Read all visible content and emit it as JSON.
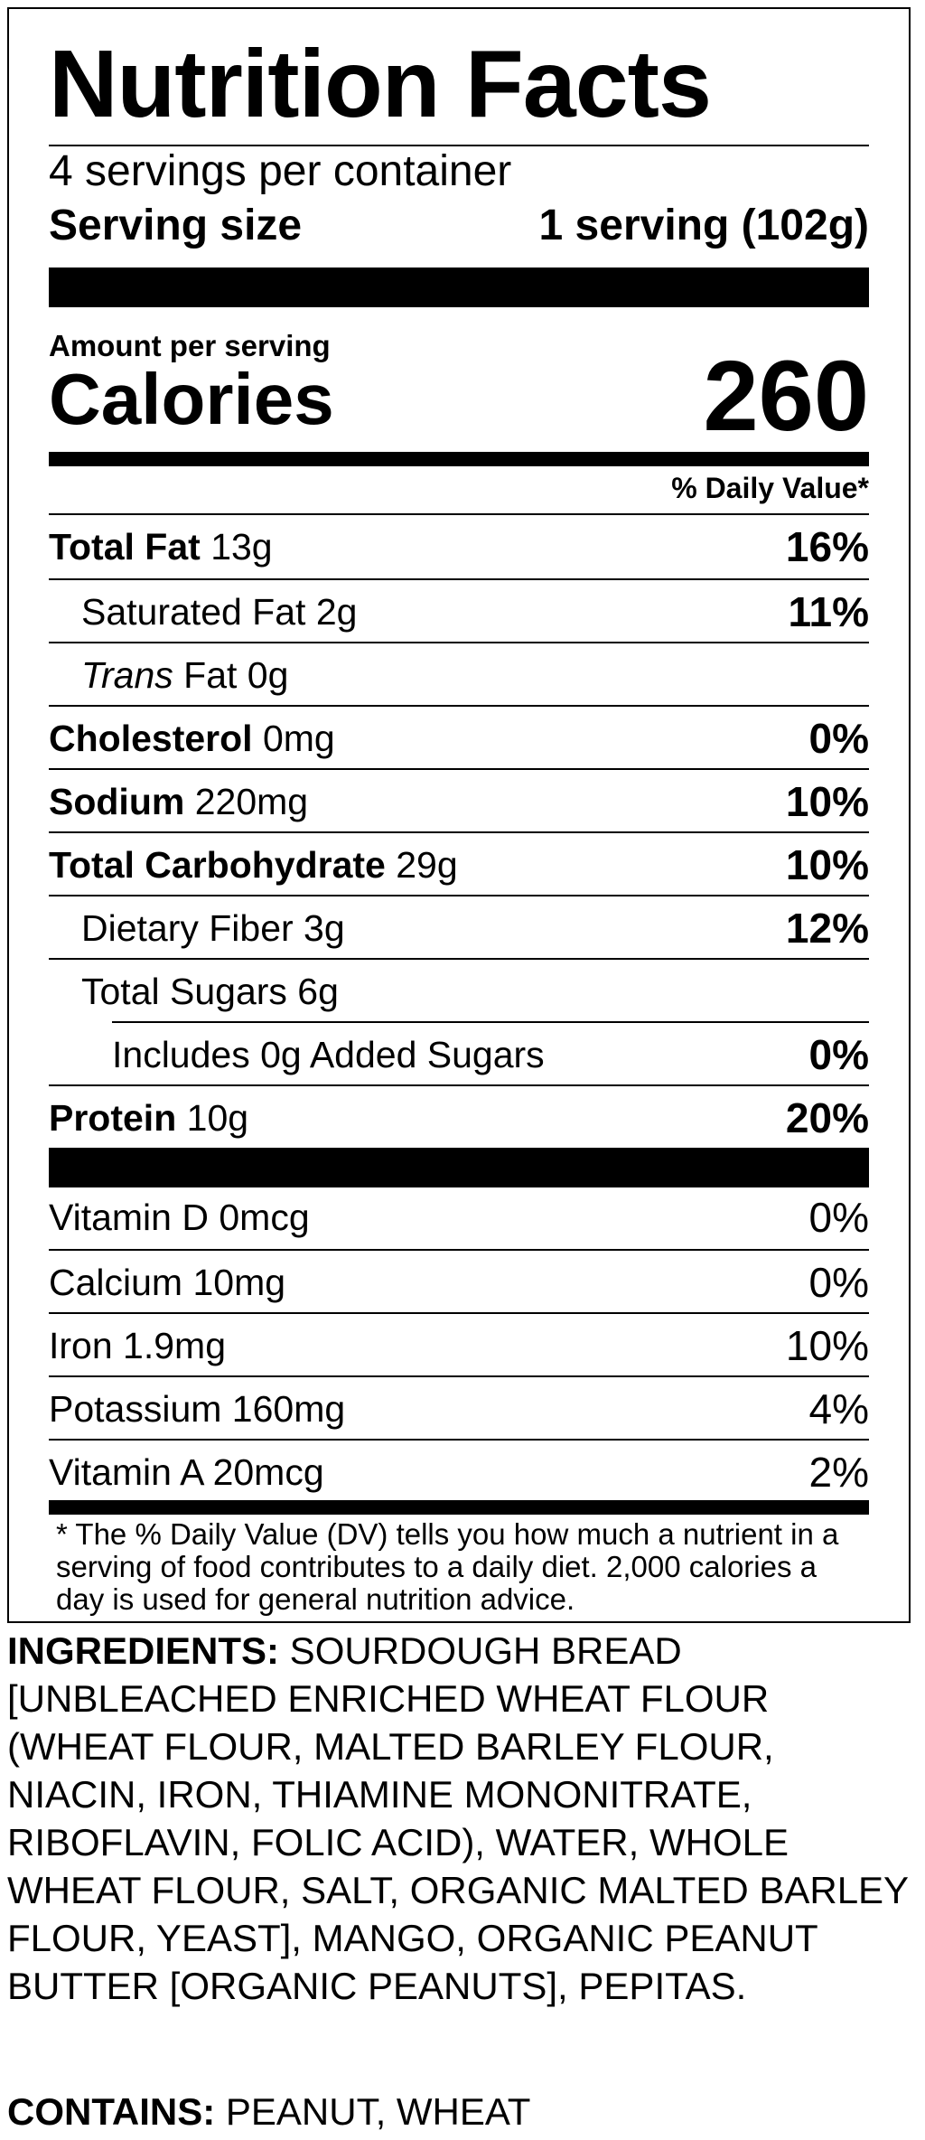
{
  "label": {
    "title": "Nutrition Facts",
    "servings_per_container": "4 servings per container",
    "serving_size_label": "Serving size",
    "serving_size_value": "1 serving (102g)",
    "amount_per_serving": "Amount per serving",
    "calories_label": "Calories",
    "calories_value": "260",
    "daily_value_header": "% Daily Value*",
    "nutrients": [
      {
        "bold": "Total Fat",
        "italic": "",
        "rest": " 13g",
        "pct": "16%"
      },
      {
        "bold": "",
        "italic": "",
        "rest": "Saturated Fat 2g",
        "pct": "11%"
      },
      {
        "bold": "",
        "italic": "Trans",
        "rest": " Fat 0g",
        "pct": ""
      },
      {
        "bold": "Cholesterol",
        "italic": "",
        "rest": " 0mg",
        "pct": "0%"
      },
      {
        "bold": "Sodium",
        "italic": "",
        "rest": " 220mg",
        "pct": "10%"
      },
      {
        "bold": "Total Carbohydrate",
        "italic": "",
        "rest": " 29g",
        "pct": "10%"
      },
      {
        "bold": "",
        "italic": "",
        "rest": "Dietary Fiber 3g",
        "pct": "12%"
      },
      {
        "bold": "",
        "italic": "",
        "rest": "Total Sugars 6g",
        "pct": ""
      },
      {
        "bold": "",
        "italic": "",
        "rest": "Includes 0g Added Sugars",
        "pct": "0%"
      },
      {
        "bold": "Protein",
        "italic": "",
        "rest": " 10g",
        "pct": "20%"
      }
    ],
    "vitamins": [
      {
        "name": "Vitamin D 0mcg",
        "pct": "0%"
      },
      {
        "name": "Calcium 10mg",
        "pct": "0%"
      },
      {
        "name": "Iron 1.9mg",
        "pct": "10%"
      },
      {
        "name": "Potassium 160mg",
        "pct": "4%"
      },
      {
        "name": "Vitamin A 20mcg",
        "pct": "2%"
      }
    ],
    "footnote": "* The % Daily Value (DV) tells you how much a nutrient in a serving of food contributes to a daily diet. 2,000 calories a day is used for general nutrition advice."
  },
  "ingredients": {
    "heading": "INGREDIENTS:",
    "text": " SOURDOUGH BREAD [UNBLEACHED ENRICHED WHEAT FLOUR (WHEAT FLOUR, MALTED BARLEY FLOUR, NIACIN, IRON, THIAMINE MONONITRATE, RIBOFLAVIN, FOLIC ACID), WATER, WHOLE WHEAT FLOUR, SALT, ORGANIC MALTED BARLEY FLOUR, YEAST], MANGO, ORGANIC PEANUT BUTTER [ORGANIC PEANUTS], PEPITAS."
  },
  "contains": {
    "heading": "CONTAINS:",
    "text": " PEANUT, WHEAT"
  }
}
